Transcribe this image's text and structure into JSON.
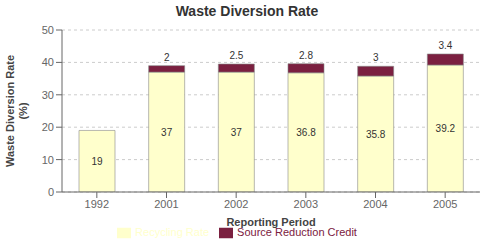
{
  "chart_data": {
    "type": "bar",
    "title": "Waste Diversion Rate",
    "xlabel": "Reporting Period",
    "ylabel": "Waste Diversion Rate\n(%)",
    "categories": [
      "1992",
      "2001",
      "2002",
      "2003",
      "2004",
      "2005"
    ],
    "series": [
      {
        "name": "Recycling Rate",
        "color": "#FFFFCC",
        "values": [
          19,
          37,
          37,
          36.8,
          35.8,
          39.2
        ]
      },
      {
        "name": "Source Reduction Credit",
        "color": "#7B2040",
        "values": [
          0,
          2,
          2.5,
          2.8,
          3.0,
          3.4
        ]
      }
    ],
    "stacked": true,
    "data_labels": true,
    "ylim": [
      0,
      50
    ],
    "yticks": [
      0,
      10,
      20,
      30,
      40,
      50
    ],
    "grid": true,
    "legend": "bottom"
  }
}
